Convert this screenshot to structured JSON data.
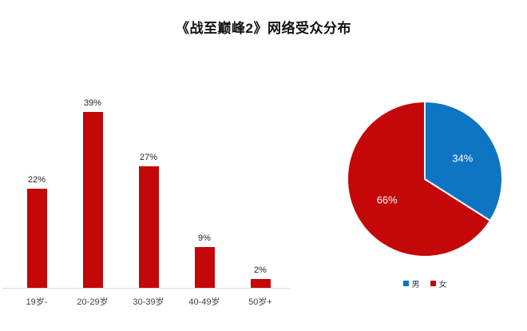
{
  "page_title": "《战至巅峰2》网络受众分布",
  "colors": {
    "red": "#c40708",
    "blue": "#0e74c4",
    "axis": "#d9d9d9",
    "text": "#404040"
  },
  "chart_data": [
    {
      "type": "bar",
      "categories": [
        "19岁-",
        "20-29岁",
        "30-39岁",
        "40-49岁",
        "50岁+"
      ],
      "values": [
        22,
        39,
        27,
        9,
        2
      ],
      "value_labels": [
        "22%",
        "39%",
        "27%",
        "9%",
        "2%"
      ],
      "bar_color": "#c40708",
      "ylim": [
        0,
        40
      ],
      "grid": false,
      "y_axis_visible": false,
      "data_labels": "above-bars"
    },
    {
      "type": "pie",
      "categories": [
        "男",
        "女"
      ],
      "values": [
        34,
        66
      ],
      "value_labels": [
        "34%",
        "66%"
      ],
      "colors": [
        "#0e74c4",
        "#c40708"
      ],
      "start_angle_deg": -90,
      "direction": "clockwise",
      "slice_border_color": "#ffffff",
      "legend_position": "bottom"
    }
  ],
  "legend": {
    "items": [
      {
        "label": "男",
        "color": "#0e74c4"
      },
      {
        "label": "女",
        "color": "#c40708"
      }
    ]
  }
}
